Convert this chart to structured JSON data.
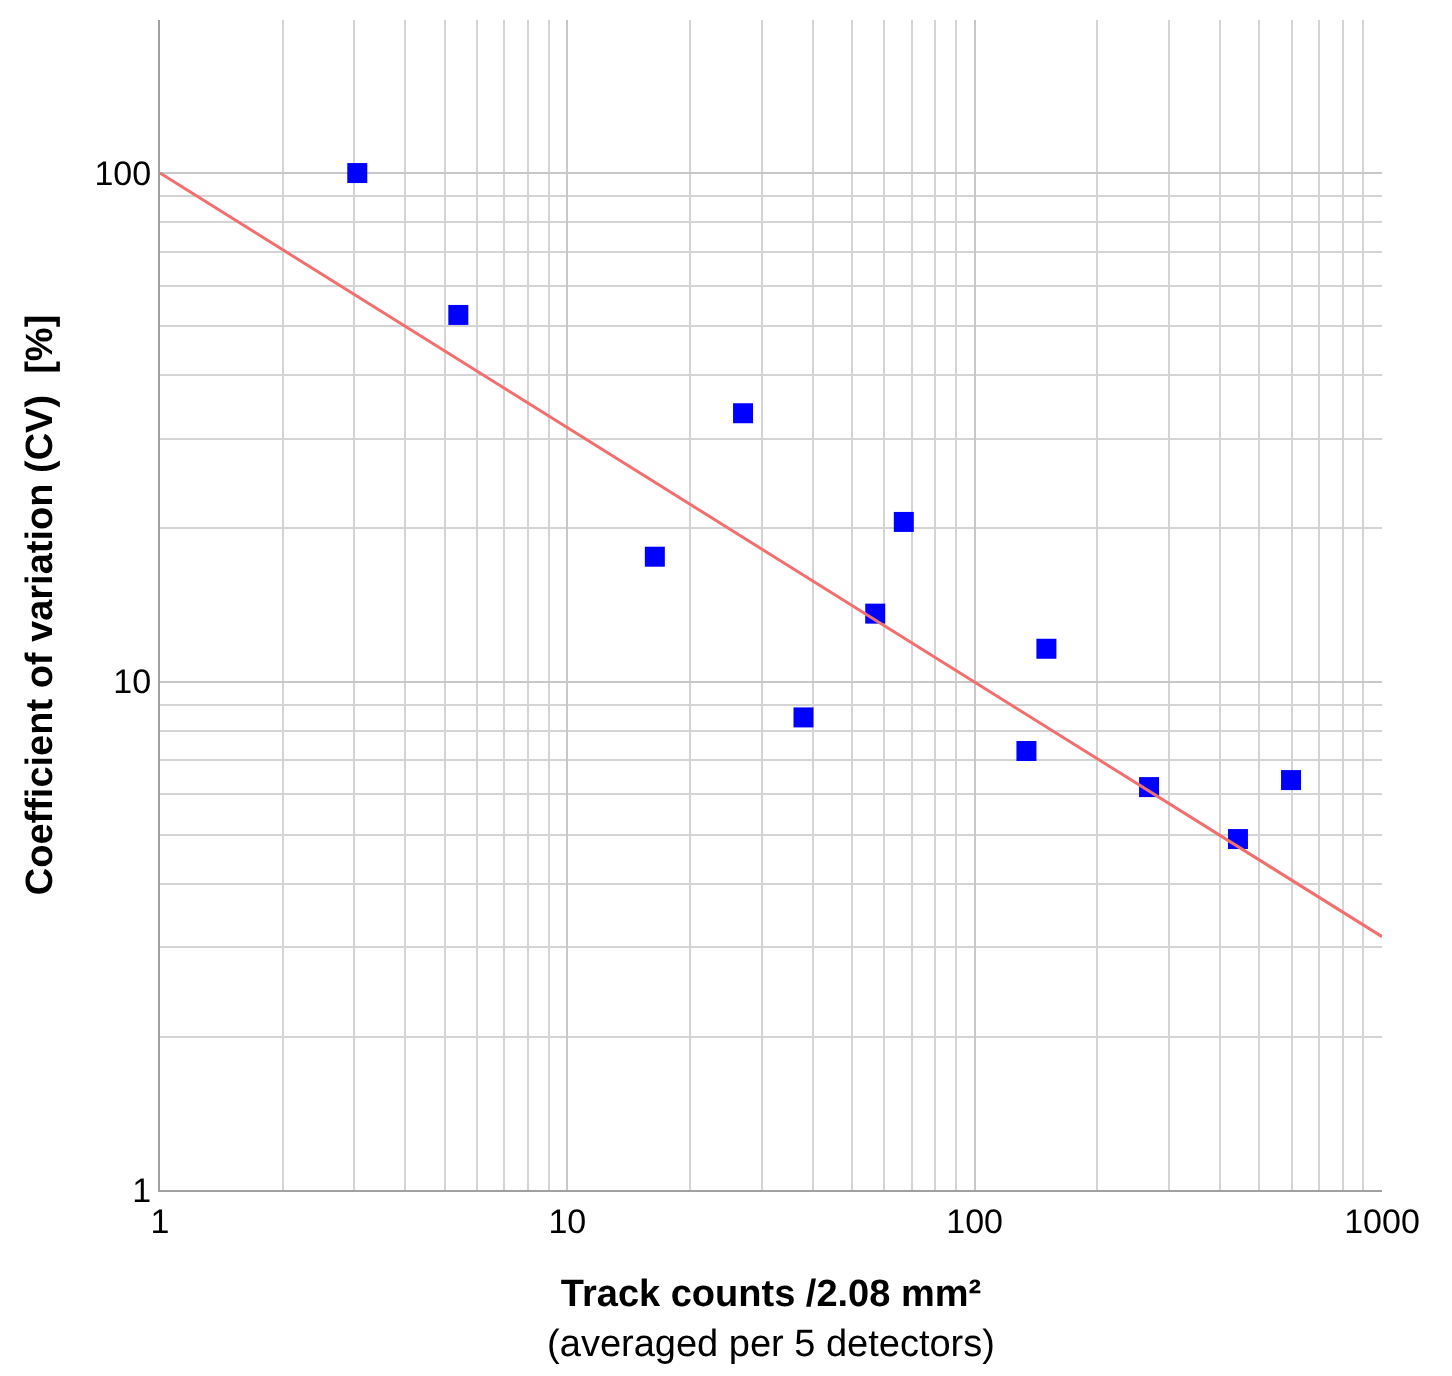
{
  "chart_data": {
    "type": "scatter",
    "xlabel": "Track counts /2.08 mm²\n(averaged per 5 detectors)",
    "ylabel": "Coefficient of variation (CV)  [%]",
    "log": "xy",
    "grid": true,
    "marker": "square",
    "xlim": [
      1,
      1000
    ],
    "xticks": [
      1,
      10,
      100,
      1000
    ],
    "ylim": [
      1,
      200
    ],
    "yticks": [
      1,
      10,
      100
    ],
    "series": [
      {
        "color": "#0000ff",
        "x": [
          3.05,
          5.4,
          16.4,
          27,
          38,
          57,
          67,
          134,
          150,
          268,
          443,
          598
        ],
        "values": [
          100,
          52.6,
          17.6,
          33.7,
          8.5,
          13.6,
          20.6,
          7.3,
          11.6,
          6.2,
          4.9,
          6.4
        ]
      },
      {
        "type": "line",
        "color": "#f07070",
        "line_style": "solid",
        "marker": "none",
        "x": [
          1,
          1000
        ],
        "values": [
          100,
          3.15
        ]
      }
    ]
  }
}
